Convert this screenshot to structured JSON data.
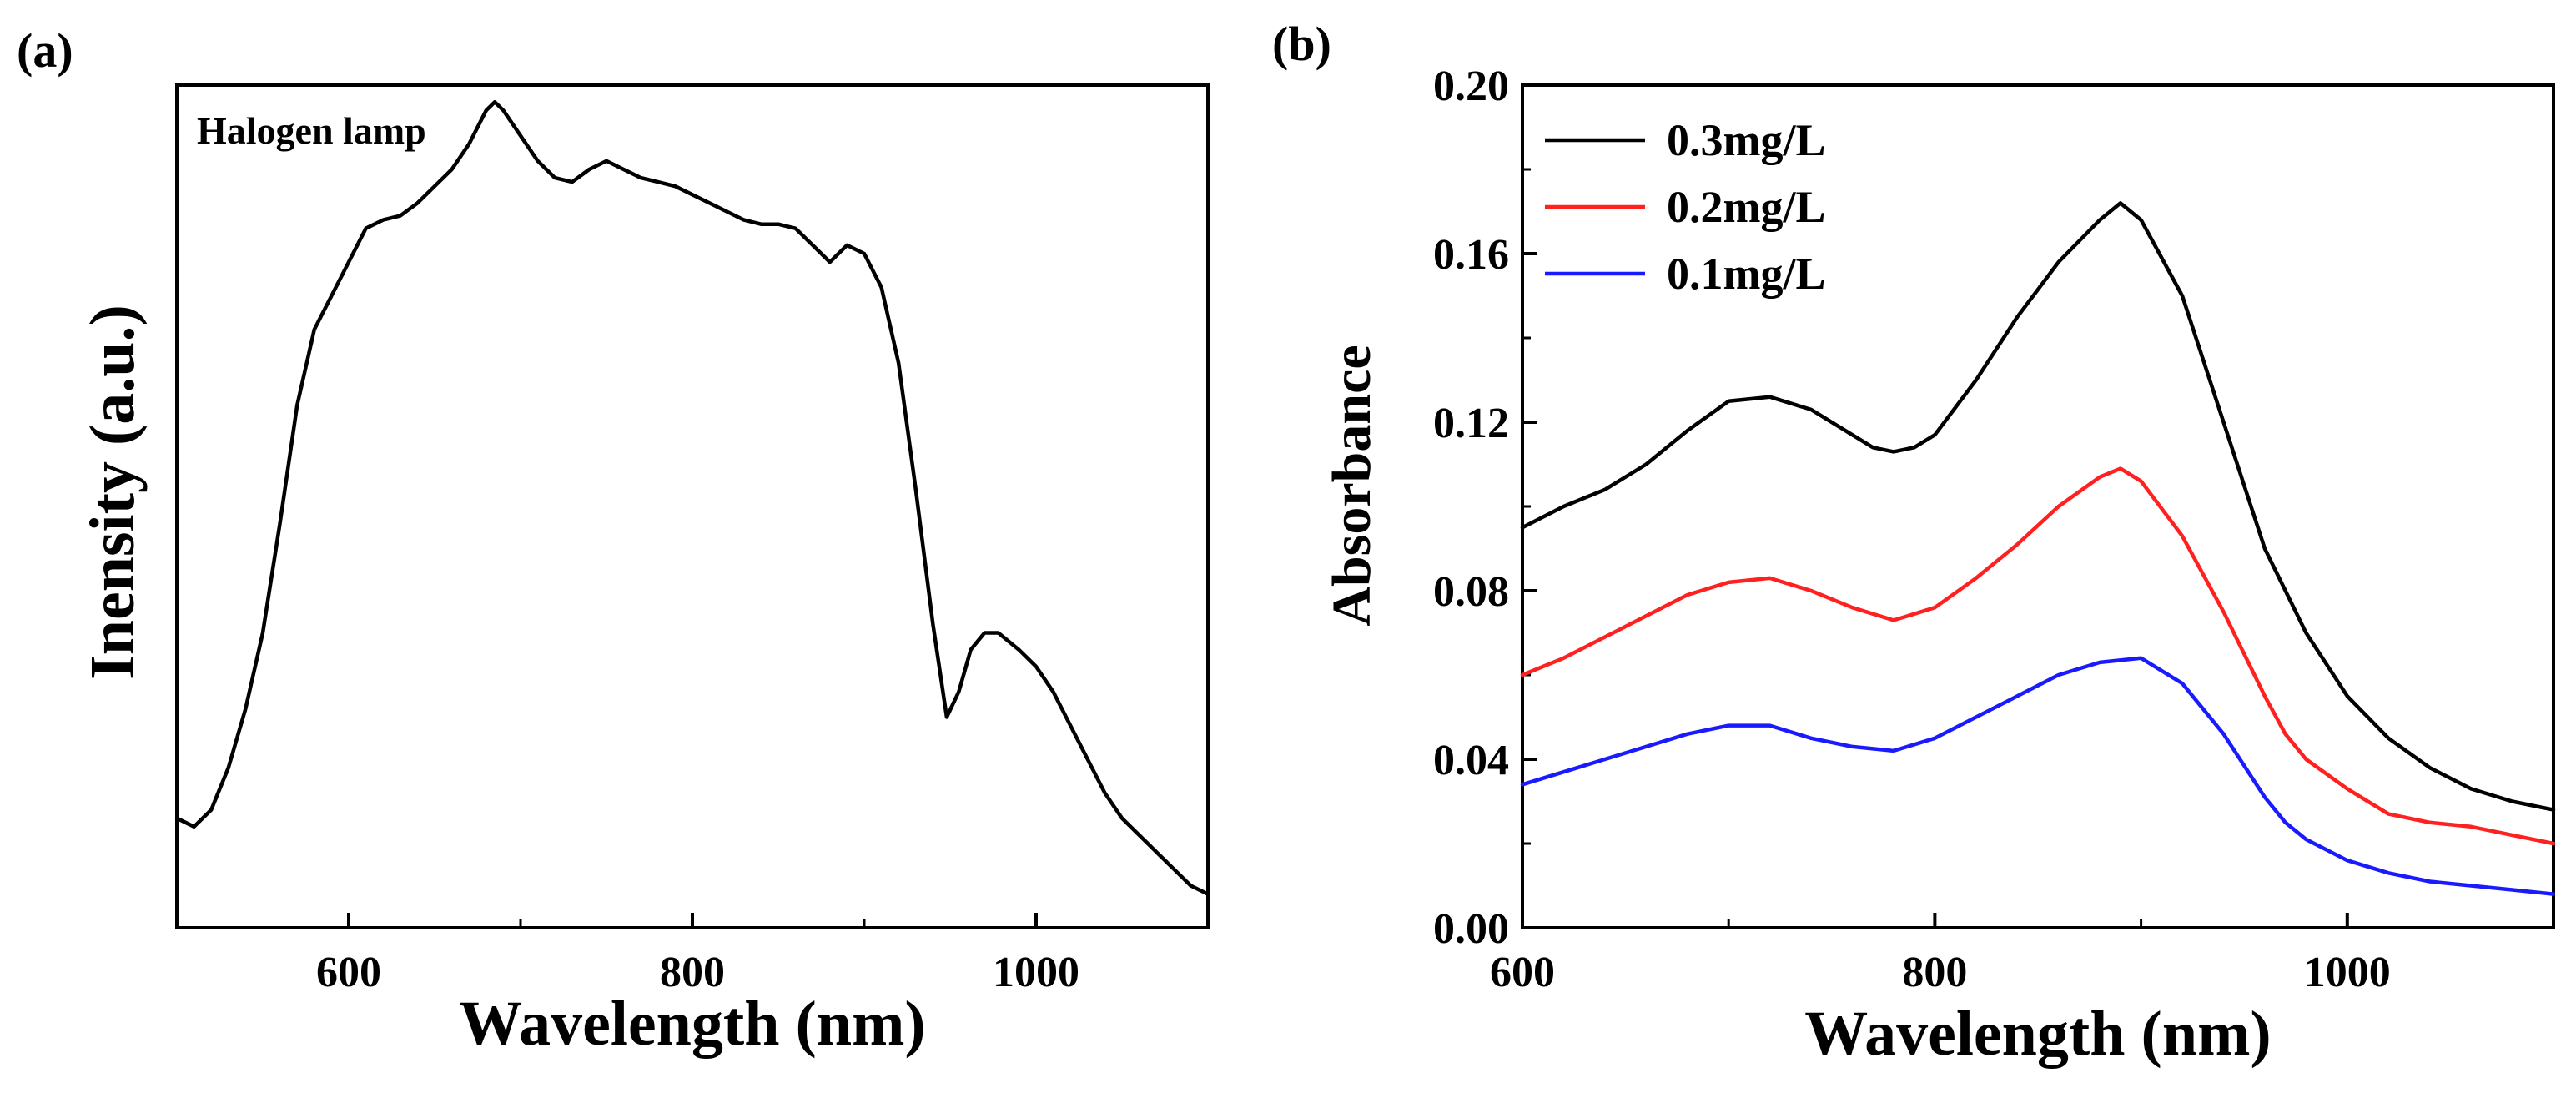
{
  "chart_data": [
    {
      "panel_label": "(a)",
      "type": "line",
      "title": "Halogen lamp",
      "xlabel": "Wavelength (nm)",
      "ylabel": "Inensity (a.u.)",
      "xlim": [
        500,
        1100
      ],
      "ylim": [
        0,
        1
      ],
      "xticks": [
        600,
        800,
        1000
      ],
      "xtick_labels": [
        "600",
        "800",
        "1000"
      ],
      "yticks": [],
      "grid": false,
      "series": [
        {
          "name": "Halogen lamp",
          "color": "#000000",
          "x": [
            500,
            510,
            520,
            530,
            540,
            550,
            560,
            570,
            580,
            590,
            600,
            610,
            620,
            630,
            640,
            650,
            660,
            670,
            680,
            685,
            690,
            700,
            710,
            720,
            730,
            740,
            750,
            760,
            770,
            780,
            790,
            800,
            810,
            820,
            830,
            840,
            850,
            860,
            870,
            880,
            890,
            900,
            910,
            920,
            930,
            940,
            948,
            955,
            962,
            970,
            978,
            990,
            1000,
            1010,
            1020,
            1030,
            1040,
            1050,
            1060,
            1070,
            1080,
            1090,
            1100
          ],
          "y": [
            0.13,
            0.12,
            0.14,
            0.19,
            0.26,
            0.35,
            0.48,
            0.62,
            0.71,
            0.75,
            0.79,
            0.83,
            0.84,
            0.845,
            0.86,
            0.88,
            0.9,
            0.93,
            0.97,
            0.98,
            0.97,
            0.94,
            0.91,
            0.89,
            0.885,
            0.9,
            0.91,
            0.9,
            0.89,
            0.885,
            0.88,
            0.87,
            0.86,
            0.85,
            0.84,
            0.835,
            0.835,
            0.83,
            0.81,
            0.79,
            0.81,
            0.8,
            0.76,
            0.67,
            0.52,
            0.36,
            0.25,
            0.28,
            0.33,
            0.35,
            0.35,
            0.33,
            0.31,
            0.28,
            0.24,
            0.2,
            0.16,
            0.13,
            0.11,
            0.09,
            0.07,
            0.05,
            0.04
          ]
        }
      ]
    },
    {
      "panel_label": "(b)",
      "type": "line",
      "xlabel": "Wavelength (nm)",
      "ylabel": "Absorbance",
      "xlim": [
        600,
        1100
      ],
      "ylim": [
        0.0,
        0.2
      ],
      "xticks": [
        600,
        800,
        1000
      ],
      "xtick_labels": [
        "600",
        "800",
        "1000"
      ],
      "yticks": [
        0.0,
        0.04,
        0.08,
        0.12,
        0.16,
        0.2
      ],
      "ytick_labels": [
        "0.00",
        "0.04",
        "0.08",
        "0.12",
        "0.16",
        "0.20"
      ],
      "legend_position": "top-left",
      "grid": false,
      "series": [
        {
          "name": "0.3mg/L",
          "color": "#000000",
          "x": [
            600,
            620,
            640,
            660,
            680,
            700,
            720,
            740,
            760,
            770,
            780,
            790,
            800,
            820,
            840,
            860,
            880,
            890,
            900,
            920,
            940,
            960,
            980,
            1000,
            1020,
            1040,
            1060,
            1080,
            1100
          ],
          "y": [
            0.095,
            0.1,
            0.104,
            0.11,
            0.118,
            0.125,
            0.126,
            0.123,
            0.117,
            0.114,
            0.113,
            0.114,
            0.117,
            0.13,
            0.145,
            0.158,
            0.168,
            0.172,
            0.168,
            0.15,
            0.12,
            0.09,
            0.07,
            0.055,
            0.045,
            0.038,
            0.033,
            0.03,
            0.028
          ]
        },
        {
          "name": "0.2mg/L",
          "color": "#ff2020",
          "x": [
            600,
            620,
            640,
            660,
            680,
            700,
            720,
            740,
            760,
            780,
            800,
            820,
            840,
            860,
            880,
            890,
            900,
            920,
            940,
            960,
            970,
            980,
            1000,
            1020,
            1040,
            1060,
            1080,
            1100
          ],
          "y": [
            0.06,
            0.064,
            0.069,
            0.074,
            0.079,
            0.082,
            0.083,
            0.08,
            0.076,
            0.073,
            0.076,
            0.083,
            0.091,
            0.1,
            0.107,
            0.109,
            0.106,
            0.093,
            0.075,
            0.055,
            0.046,
            0.04,
            0.033,
            0.027,
            0.025,
            0.024,
            0.022,
            0.02
          ]
        },
        {
          "name": "0.1mg/L",
          "color": "#1a1aff",
          "x": [
            600,
            620,
            640,
            660,
            680,
            700,
            720,
            740,
            760,
            780,
            800,
            820,
            840,
            860,
            880,
            900,
            920,
            940,
            960,
            970,
            980,
            1000,
            1020,
            1040,
            1060,
            1080,
            1100
          ],
          "y": [
            0.034,
            0.037,
            0.04,
            0.043,
            0.046,
            0.048,
            0.048,
            0.045,
            0.043,
            0.042,
            0.045,
            0.05,
            0.055,
            0.06,
            0.063,
            0.064,
            0.058,
            0.046,
            0.031,
            0.025,
            0.021,
            0.016,
            0.013,
            0.011,
            0.01,
            0.009,
            0.008
          ]
        }
      ]
    }
  ]
}
